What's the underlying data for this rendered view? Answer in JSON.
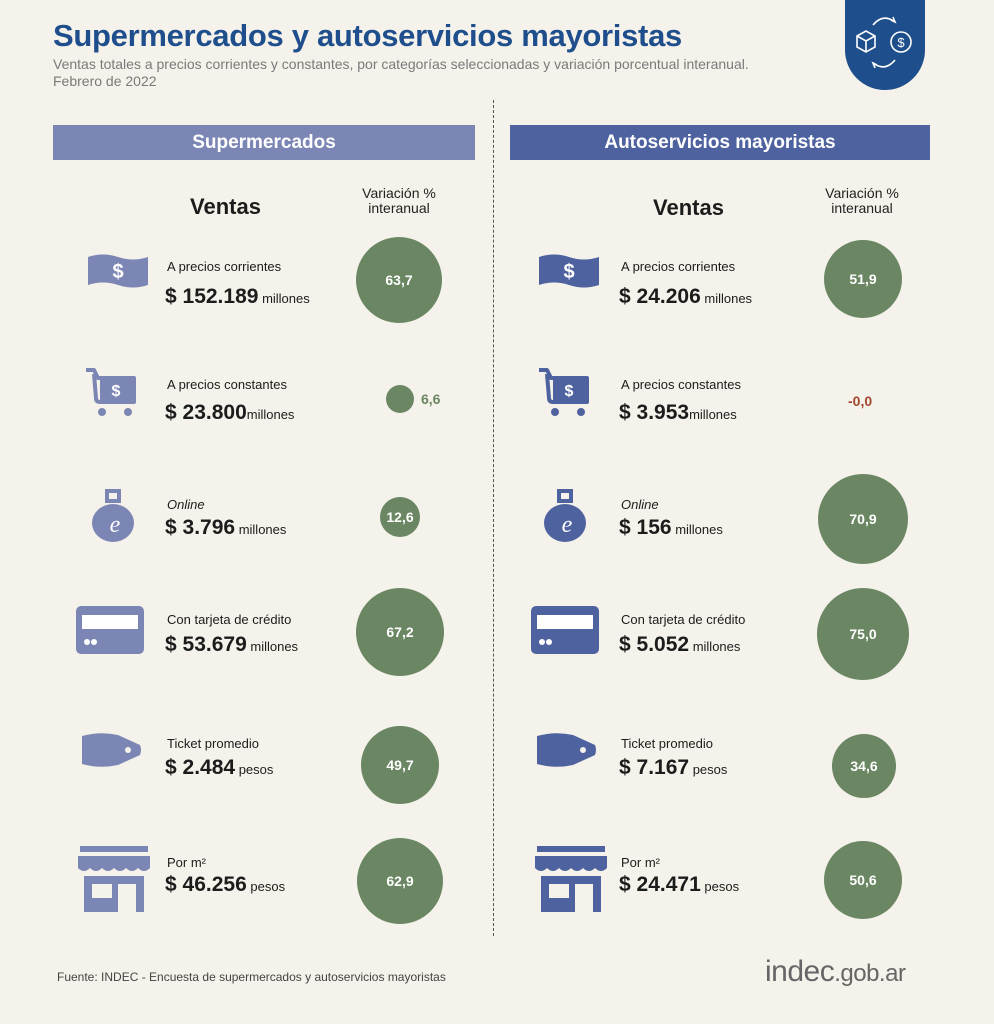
{
  "header": {
    "title": "Supermercados y autoservicios mayoristas",
    "subtitle_line1": "Ventas totales a precios corrientes y constantes, por categorías seleccionadas y variación porcentual interanual.",
    "subtitle_line2": "Febrero de 2022"
  },
  "columns": {
    "ventas": "Ventas",
    "variacion": "Variación %",
    "interanual": "interanual"
  },
  "colors": {
    "title": "#1f4e8c",
    "super_bar": "#7c86b5",
    "mayor_bar": "#4f62a0",
    "circle": "#6a8663",
    "positive_text": "#6a8663",
    "negative_text": "#a2462f"
  },
  "supermercados": {
    "title": "Supermercados",
    "rows": [
      {
        "icon": "banknote-icon",
        "label": "A precios corrientes",
        "amount": "$ 152.189",
        "unit": "millones",
        "variation": "63,7"
      },
      {
        "icon": "cart-icon",
        "label": "A precios constantes",
        "amount": "$ 23.800",
        "unit": "millones",
        "variation": "6,6"
      },
      {
        "icon": "online-bag-icon",
        "label": "Online",
        "amount": "$ 3.796",
        "unit": "millones",
        "variation": "12,6"
      },
      {
        "icon": "credit-card-icon",
        "label": "Con tarjeta de crédito",
        "amount": "$ 53.679",
        "unit": "millones",
        "variation": "67,2"
      },
      {
        "icon": "price-tag-icon",
        "label": "Ticket promedio",
        "amount": "$ 2.484",
        "unit": "pesos",
        "variation": "49,7"
      },
      {
        "icon": "storefront-icon",
        "label": "Por m²",
        "amount": "$ 46.256",
        "unit": "pesos",
        "variation": "62,9"
      }
    ]
  },
  "mayoristas": {
    "title": "Autoservicios mayoristas",
    "rows": [
      {
        "icon": "banknote-icon",
        "label": "A precios corrientes",
        "amount": "$ 24.206",
        "unit": "millones",
        "variation": "51,9"
      },
      {
        "icon": "cart-icon",
        "label": "A precios constantes",
        "amount": "$ 3.953",
        "unit": "millones",
        "variation": "-0,0"
      },
      {
        "icon": "online-bag-icon",
        "label": "Online",
        "amount": "$ 156",
        "unit": "millones",
        "variation": "70,9"
      },
      {
        "icon": "credit-card-icon",
        "label": "Con tarjeta de crédito",
        "amount": "$ 5.052",
        "unit": "millones",
        "variation": "75,0"
      },
      {
        "icon": "price-tag-icon",
        "label": "Ticket promedio",
        "amount": "$ 7.167",
        "unit": "pesos",
        "variation": "34,6"
      },
      {
        "icon": "storefront-icon",
        "label": "Por m²",
        "amount": "$ 24.471",
        "unit": "pesos",
        "variation": "50,6"
      }
    ]
  },
  "footer": {
    "source": "Fuente: INDEC - Encuesta de supermercados y autoservicios mayoristas",
    "brand_name": "indec",
    "brand_domain": ".gob.ar"
  }
}
